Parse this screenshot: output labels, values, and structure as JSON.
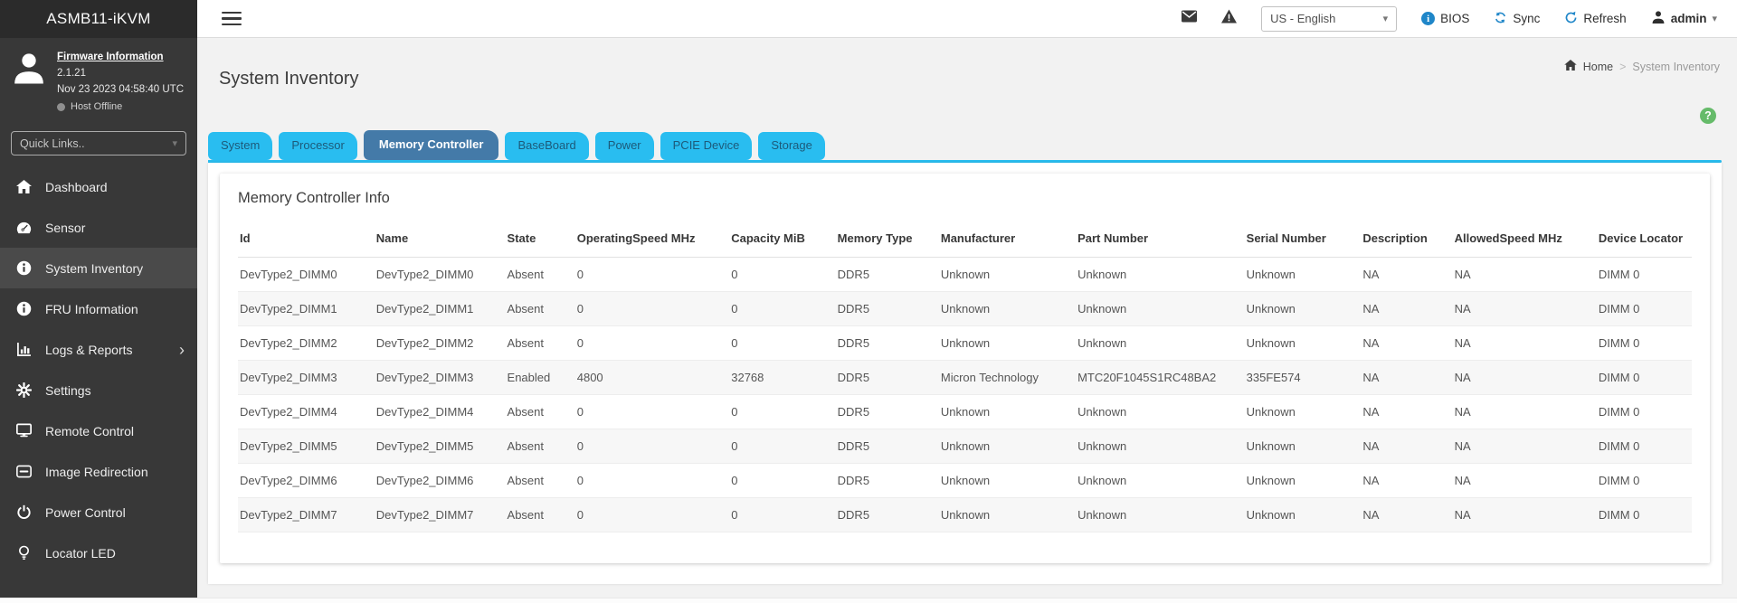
{
  "app": {
    "title": "ASMB11-iKVM"
  },
  "colors": {
    "tab": "#29bdf0",
    "tab_active": "#447aa8",
    "accent": "#1f86c8",
    "help": "#66bb6a"
  },
  "sidebar": {
    "firmware": {
      "link_label": "Firmware Information",
      "version": "2.1.21",
      "date": "Nov 23 2023 04:58:40 UTC",
      "host_status": "Host Offline"
    },
    "quick_links_placeholder": "Quick Links..",
    "items": [
      {
        "label": "Dashboard",
        "icon": "home"
      },
      {
        "label": "Sensor",
        "icon": "gauge"
      },
      {
        "label": "System Inventory",
        "icon": "info",
        "active": true
      },
      {
        "label": "FRU Information",
        "icon": "info"
      },
      {
        "label": "Logs & Reports",
        "icon": "chart",
        "expandable": true
      },
      {
        "label": "Settings",
        "icon": "gear"
      },
      {
        "label": "Remote Control",
        "icon": "monitor"
      },
      {
        "label": "Image Redirection",
        "icon": "disc"
      },
      {
        "label": "Power Control",
        "icon": "power"
      },
      {
        "label": "Locator LED",
        "icon": "bulb"
      }
    ]
  },
  "topbar": {
    "language": "US - English",
    "bios_label": "BIOS",
    "sync_label": "Sync",
    "refresh_label": "Refresh",
    "user": "admin"
  },
  "page": {
    "title": "System Inventory",
    "breadcrumb_home": "Home",
    "breadcrumb_current": "System Inventory"
  },
  "tabs": [
    {
      "label": "System"
    },
    {
      "label": "Processor"
    },
    {
      "label": "Memory Controller",
      "active": true
    },
    {
      "label": "BaseBoard"
    },
    {
      "label": "Power"
    },
    {
      "label": "PCIE Device"
    },
    {
      "label": "Storage"
    }
  ],
  "panel": {
    "heading": "Memory Controller Info"
  },
  "table": {
    "columns": [
      "Id",
      "Name",
      "State",
      "OperatingSpeed MHz",
      "Capacity MiB",
      "Memory Type",
      "Manufacturer",
      "Part Number",
      "Serial Number",
      "Description",
      "AllowedSpeed MHz",
      "Device Locator"
    ],
    "rows": [
      [
        "DevType2_DIMM0",
        "DevType2_DIMM0",
        "Absent",
        "0",
        "0",
        "DDR5",
        "Unknown",
        "Unknown",
        "Unknown",
        "NA",
        "NA",
        "DIMM 0"
      ],
      [
        "DevType2_DIMM1",
        "DevType2_DIMM1",
        "Absent",
        "0",
        "0",
        "DDR5",
        "Unknown",
        "Unknown",
        "Unknown",
        "NA",
        "NA",
        "DIMM 0"
      ],
      [
        "DevType2_DIMM2",
        "DevType2_DIMM2",
        "Absent",
        "0",
        "0",
        "DDR5",
        "Unknown",
        "Unknown",
        "Unknown",
        "NA",
        "NA",
        "DIMM 0"
      ],
      [
        "DevType2_DIMM3",
        "DevType2_DIMM3",
        "Enabled",
        "4800",
        "32768",
        "DDR5",
        "Micron Technology",
        "MTC20F1045S1RC48BA2",
        "335FE574",
        "NA",
        "NA",
        "DIMM 0"
      ],
      [
        "DevType2_DIMM4",
        "DevType2_DIMM4",
        "Absent",
        "0",
        "0",
        "DDR5",
        "Unknown",
        "Unknown",
        "Unknown",
        "NA",
        "NA",
        "DIMM 0"
      ],
      [
        "DevType2_DIMM5",
        "DevType2_DIMM5",
        "Absent",
        "0",
        "0",
        "DDR5",
        "Unknown",
        "Unknown",
        "Unknown",
        "NA",
        "NA",
        "DIMM 0"
      ],
      [
        "DevType2_DIMM6",
        "DevType2_DIMM6",
        "Absent",
        "0",
        "0",
        "DDR5",
        "Unknown",
        "Unknown",
        "Unknown",
        "NA",
        "NA",
        "DIMM 0"
      ],
      [
        "DevType2_DIMM7",
        "DevType2_DIMM7",
        "Absent",
        "0",
        "0",
        "DDR5",
        "Unknown",
        "Unknown",
        "Unknown",
        "NA",
        "NA",
        "DIMM 0"
      ]
    ]
  }
}
